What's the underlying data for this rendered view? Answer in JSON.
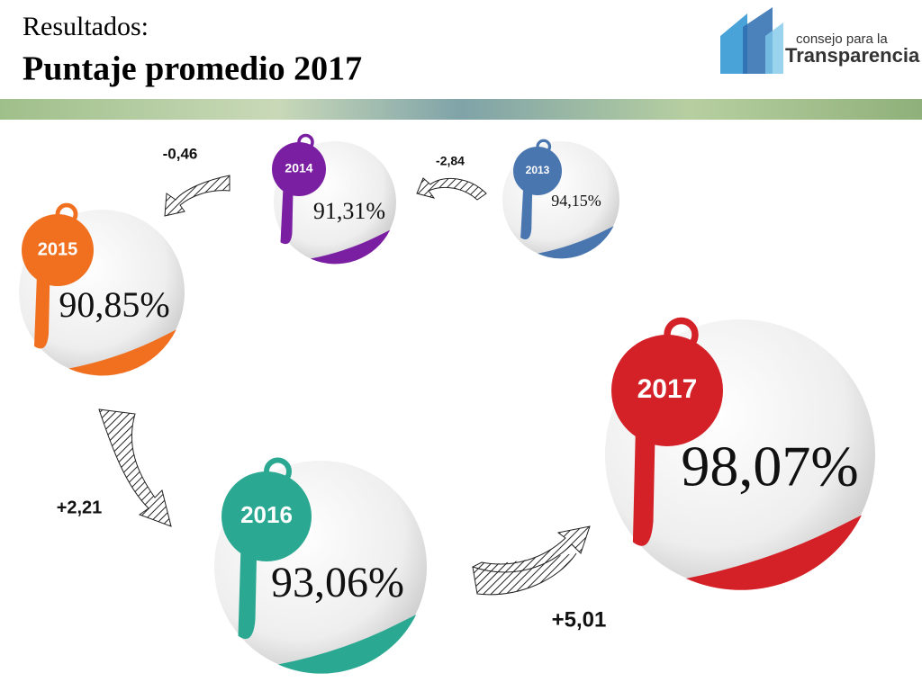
{
  "header": {
    "kicker": "Resultados:",
    "title": "Puntaje promedio 2017"
  },
  "logo": {
    "line1": "consejo para la",
    "line2": "Transparencia"
  },
  "nodes": [
    {
      "year": "2013",
      "score": "94,15%"
    },
    {
      "year": "2014",
      "score": "91,31%"
    },
    {
      "year": "2015",
      "score": "90,85%"
    },
    {
      "year": "2016",
      "score": "93,06%"
    },
    {
      "year": "2017",
      "score": "98,07%"
    }
  ],
  "changes": [
    "-2,84",
    "-0,46",
    "+2,21",
    "+5,01"
  ]
}
